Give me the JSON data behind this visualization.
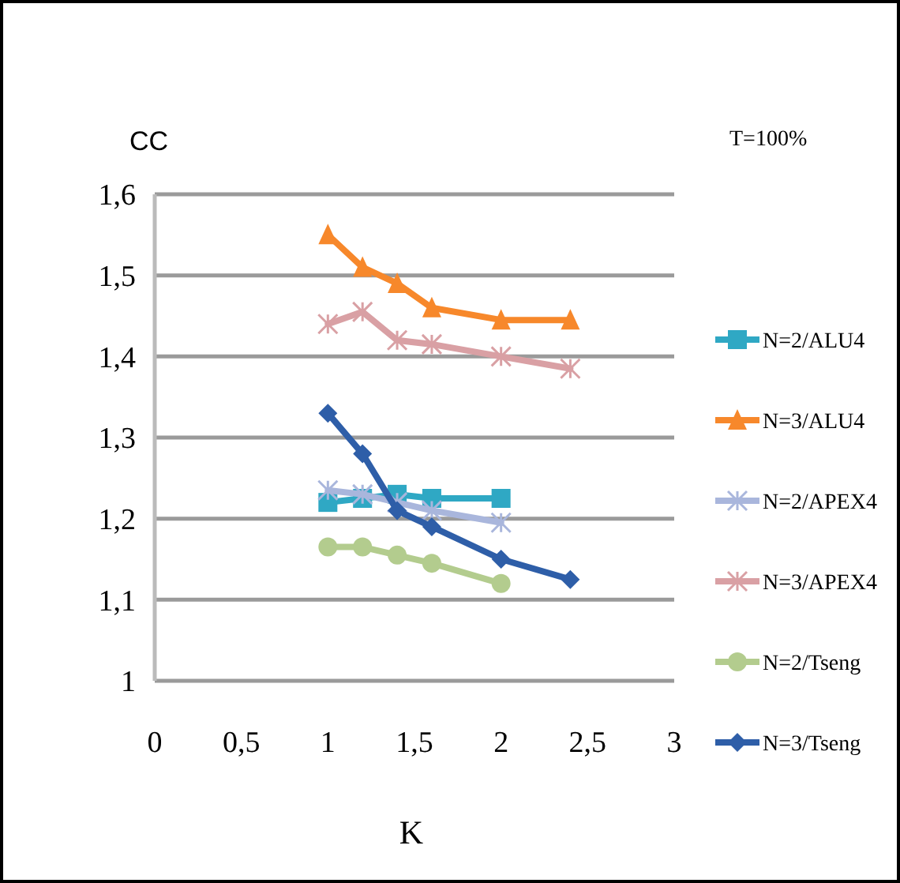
{
  "chart_data": {
    "type": "line",
    "title": "T=100%",
    "xlabel": "K",
    "ylabel": "CC",
    "xlim": [
      0,
      3
    ],
    "xticks": [
      0,
      {
        "value": 0.5,
        "label": "0,5"
      },
      1,
      {
        "value": 1.5,
        "label": "1,5"
      },
      2,
      {
        "value": 2.5,
        "label": "2,5"
      },
      3
    ],
    "ylim": [
      1,
      1.6
    ],
    "yticks": [
      1,
      {
        "value": 1.1,
        "label": "1,1"
      },
      {
        "value": 1.2,
        "label": "1,2"
      },
      {
        "value": 1.3,
        "label": "1,3"
      },
      {
        "value": 1.4,
        "label": "1,4"
      },
      {
        "value": 1.5,
        "label": "1,5"
      },
      {
        "value": 1.6,
        "label": "1,6"
      }
    ],
    "grid": "y",
    "legend": "right",
    "series": [
      {
        "name": "N=2/ALU4",
        "color": "#2fa8c4",
        "marker": "square",
        "x": [
          1,
          1.2,
          1.4,
          1.6,
          2
        ],
        "values": [
          1.22,
          1.225,
          1.23,
          1.225,
          1.225
        ]
      },
      {
        "name": "N=3/ALU4",
        "color": "#f7882b",
        "marker": "triangle",
        "x": [
          1,
          1.2,
          1.4,
          1.6,
          2,
          2.4
        ],
        "values": [
          1.55,
          1.51,
          1.49,
          1.46,
          1.445,
          1.445
        ]
      },
      {
        "name": "N=2/APEX4",
        "color": "#a9b6dc",
        "marker": "cross",
        "x": [
          1,
          1.2,
          1.4,
          1.6,
          2
        ],
        "values": [
          1.235,
          1.23,
          1.22,
          1.21,
          1.195
        ]
      },
      {
        "name": "N=3/APEX4",
        "color": "#d9a0a4",
        "marker": "cross",
        "x": [
          1,
          1.2,
          1.4,
          1.6,
          2,
          2.4
        ],
        "values": [
          1.44,
          1.455,
          1.42,
          1.415,
          1.4,
          1.385
        ]
      },
      {
        "name": "N=2/Tseng",
        "color": "#b3cc8e",
        "marker": "circle",
        "x": [
          1,
          1.2,
          1.4,
          1.6,
          2
        ],
        "values": [
          1.165,
          1.165,
          1.155,
          1.145,
          1.12
        ]
      },
      {
        "name": "N=3/Tseng",
        "color": "#2e5ea8",
        "marker": "diamond",
        "x": [
          1,
          1.2,
          1.4,
          1.6,
          2,
          2.4
        ],
        "values": [
          1.33,
          1.28,
          1.21,
          1.19,
          1.15,
          1.125
        ]
      }
    ]
  }
}
